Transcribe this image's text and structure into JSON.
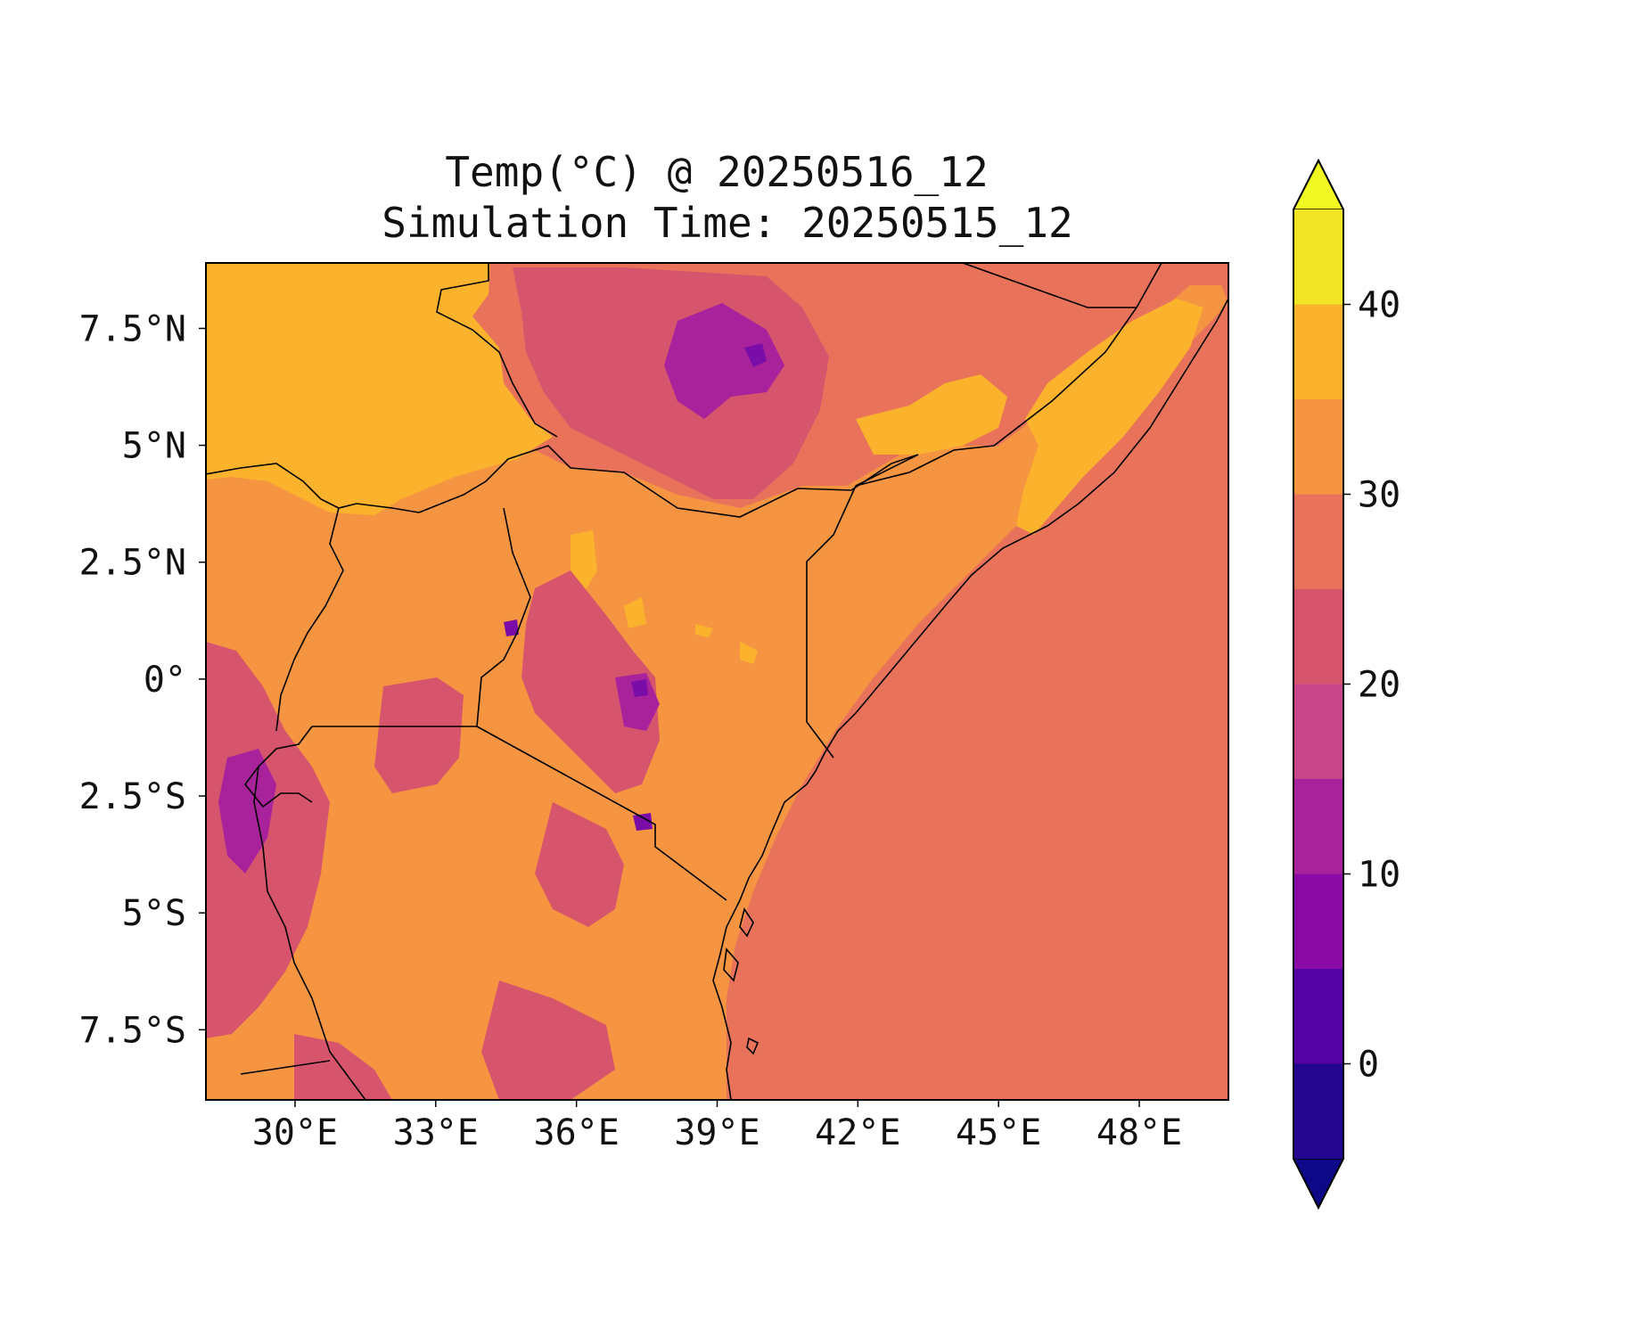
{
  "title": {
    "line1": "Temp(°C) @ 20250516_12",
    "line2": "Simulation Time: 20250515_12"
  },
  "axes": {
    "x_ticks": [
      "30°E",
      "33°E",
      "36°E",
      "39°E",
      "42°E",
      "45°E",
      "48°E"
    ],
    "y_ticks": [
      "7.5°N",
      "5°N",
      "2.5°N",
      "0°",
      "2.5°S",
      "5°S",
      "7.5°S"
    ]
  },
  "chart_data": {
    "type": "heatmap",
    "variable": "Temp(°C)",
    "valid_time": "20250516_12",
    "simulation_time": "20250515_12",
    "lon_range": [
      28.1,
      49.9
    ],
    "lat_range": [
      -9.0,
      8.9
    ],
    "x_ticks": [
      30,
      33,
      36,
      39,
      42,
      45,
      48
    ],
    "y_ticks": [
      7.5,
      5,
      2.5,
      0,
      -2.5,
      -5,
      -7.5
    ],
    "grid": false,
    "colorbar": {
      "location": "right",
      "extend": "both",
      "levels": [
        -5,
        0,
        5,
        10,
        15,
        20,
        25,
        30,
        35,
        40,
        45
      ],
      "tick_labels": [
        "0",
        "10",
        "20",
        "30",
        "40"
      ],
      "tick_values": [
        0,
        10,
        20,
        30,
        40
      ],
      "colors": [
        "#0d0887",
        "#220690",
        "#5302a3",
        "#8b0aa5",
        "#a8229c",
        "#c7468a",
        "#d6556d",
        "#e8735a",
        "#f59541",
        "#fbb22c",
        "#f2e525",
        "#f0f921"
      ]
    }
  },
  "colors": {
    "ocean_bg": "#e8735a",
    "warm_land": "#f59541",
    "hot_land": "#fbb22c",
    "cool_highland": "#d6556d",
    "cold_peaks": "#a8229c",
    "coldest": "#7a0ca8",
    "border": "#000000"
  }
}
